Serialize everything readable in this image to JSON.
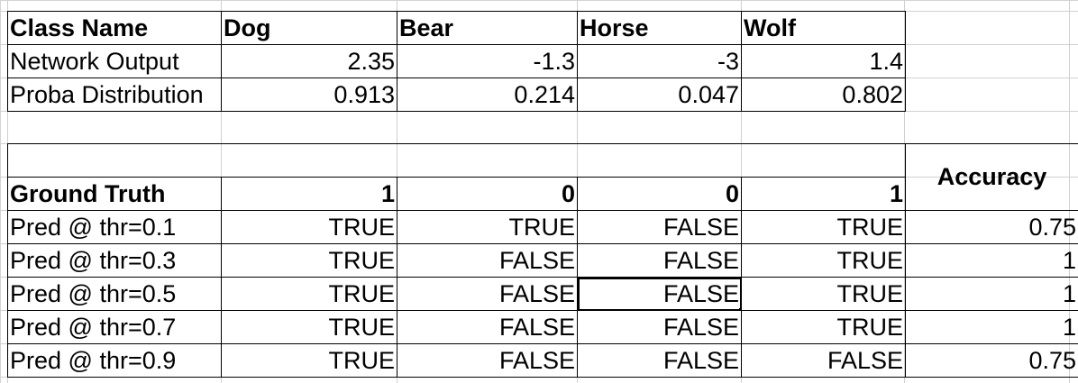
{
  "top_table": {
    "header": [
      "Class Name",
      "Dog",
      "Bear",
      "Horse",
      "Wolf"
    ],
    "rows": [
      [
        "Network Output",
        "2.35",
        "-1.3",
        "-3",
        "1.4"
      ],
      [
        "Proba Distribution",
        "0.913",
        "0.214",
        "0.047",
        "0.802"
      ]
    ]
  },
  "bottom_table": {
    "accuracy_header": "Accuracy",
    "ground_truth": [
      "Ground Truth",
      "1",
      "0",
      "0",
      "1"
    ],
    "rows": [
      [
        "Pred @ thr=0.1",
        "TRUE",
        "TRUE",
        "FALSE",
        "TRUE",
        "0.75"
      ],
      [
        "Pred @ thr=0.3",
        "TRUE",
        "FALSE",
        "FALSE",
        "TRUE",
        "1"
      ],
      [
        "Pred @ thr=0.5",
        "TRUE",
        "FALSE",
        "FALSE",
        "TRUE",
        "1"
      ],
      [
        "Pred @ thr=0.7",
        "TRUE",
        "FALSE",
        "FALSE",
        "TRUE",
        "1"
      ],
      [
        "Pred @ thr=0.9",
        "TRUE",
        "FALSE",
        "FALSE",
        "FALSE",
        "0.75"
      ]
    ]
  }
}
